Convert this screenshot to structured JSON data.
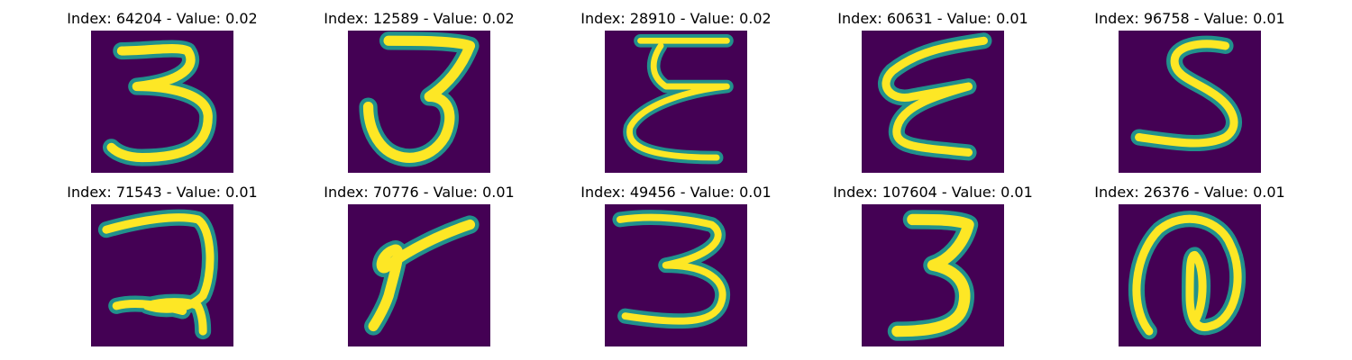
{
  "figure": {
    "background": "#440154",
    "stroke_colors": [
      "#3b528b",
      "#21918c",
      "#5ec962",
      "#fde725"
    ]
  },
  "panels": [
    {
      "title": "Index: 64204 - Value: 0.02",
      "index": 64204,
      "value": 0.02,
      "digit": "3"
    },
    {
      "title": "Index: 12589 - Value: 0.02",
      "index": 12589,
      "value": 0.02,
      "digit": "3"
    },
    {
      "title": "Index: 28910 - Value: 0.02",
      "index": 28910,
      "value": 0.02,
      "digit": "E"
    },
    {
      "title": "Index: 60631 - Value: 0.01",
      "index": 60631,
      "value": 0.01,
      "digit": "E"
    },
    {
      "title": "Index: 96758 - Value: 0.01",
      "index": 96758,
      "value": 0.01,
      "digit": "S"
    },
    {
      "title": "Index: 71543 - Value: 0.01",
      "index": 71543,
      "value": 0.01,
      "digit": "2"
    },
    {
      "title": "Index: 70776 - Value: 0.01",
      "index": 70776,
      "value": 0.01,
      "digit": "7"
    },
    {
      "title": "Index: 49456 - Value: 0.01",
      "index": 49456,
      "value": 0.01,
      "digit": "3"
    },
    {
      "title": "Index: 107604 - Value: 0.01",
      "index": 107604,
      "value": 0.01,
      "digit": "3"
    },
    {
      "title": "Index: 26376 - Value: 0.01",
      "index": 26376,
      "value": 0.01,
      "digit": "@"
    }
  ]
}
